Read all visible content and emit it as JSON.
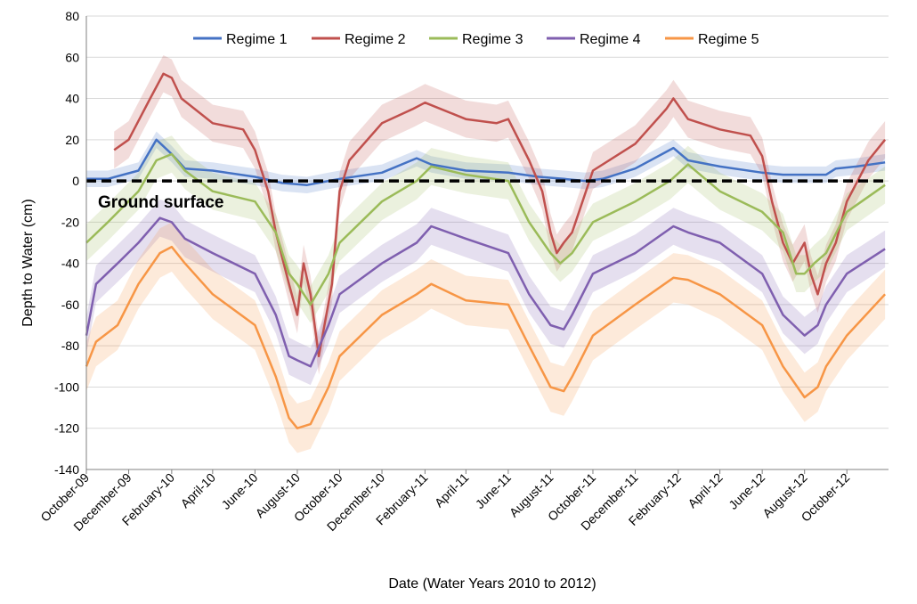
{
  "chart_data": {
    "type": "line",
    "xlabel": "Date (Water Years 2010 to 2012)",
    "ylabel": "Depth to Water (cm)",
    "ylim": [
      -140,
      80
    ],
    "yticks": [
      80,
      60,
      40,
      20,
      0,
      -20,
      -40,
      -60,
      -80,
      -100,
      -120,
      -140
    ],
    "xlim": [
      "2009-10-01",
      "2012-11-30"
    ],
    "xticks": [
      "October-09",
      "December-09",
      "February-10",
      "April-10",
      "June-10",
      "August-10",
      "October-10",
      "December-10",
      "February-11",
      "April-11",
      "June-11",
      "August-11",
      "October-11",
      "December-11",
      "February-12",
      "April-12",
      "June-12",
      "August-12",
      "October-12"
    ],
    "xtick_dates": [
      "2009-10-01",
      "2009-12-01",
      "2010-02-01",
      "2010-04-01",
      "2010-06-01",
      "2010-08-01",
      "2010-10-01",
      "2010-12-01",
      "2011-02-01",
      "2011-04-01",
      "2011-06-01",
      "2011-08-01",
      "2011-10-01",
      "2011-12-01",
      "2012-02-01",
      "2012-04-01",
      "2012-06-01",
      "2012-08-01",
      "2012-10-01"
    ],
    "grid": "horizontal",
    "legend": "top",
    "annotation": {
      "text": "Ground surface",
      "y": 0
    },
    "series": [
      {
        "name": "Regime 1",
        "color": "#4472C4",
        "band": 4,
        "x": [
          "2009-10-01",
          "2009-11-01",
          "2009-12-15",
          "2010-01-10",
          "2010-02-01",
          "2010-02-20",
          "2010-04-01",
          "2010-06-01",
          "2010-07-10",
          "2010-08-15",
          "2010-09-15",
          "2010-10-01",
          "2010-12-01",
          "2011-01-20",
          "2011-02-10",
          "2011-04-01",
          "2011-06-01",
          "2011-07-15",
          "2011-08-20",
          "2011-09-20",
          "2011-10-15",
          "2011-12-01",
          "2012-01-25",
          "2012-02-15",
          "2012-04-01",
          "2012-06-01",
          "2012-07-01",
          "2012-08-01",
          "2012-09-01",
          "2012-09-15",
          "2012-10-15",
          "2012-11-25"
        ],
        "y": [
          1,
          1,
          5,
          20,
          13,
          6,
          5,
          2,
          -1,
          -2,
          0,
          1,
          4,
          11,
          8,
          5,
          4,
          2,
          1,
          0,
          1,
          6,
          16,
          10,
          7,
          4,
          3,
          3,
          3,
          6,
          7,
          9
        ]
      },
      {
        "name": "Regime 2",
        "color": "#C0504D",
        "band": 9,
        "x": [
          "2009-11-10",
          "2009-12-01",
          "2010-01-01",
          "2010-01-20",
          "2010-02-01",
          "2010-02-15",
          "2010-04-01",
          "2010-05-15",
          "2010-06-01",
          "2010-06-20",
          "2010-07-01",
          "2010-07-20",
          "2010-08-01",
          "2010-08-10",
          "2010-08-20",
          "2010-09-01",
          "2010-09-20",
          "2010-10-01",
          "2010-10-15",
          "2010-12-01",
          "2011-01-15",
          "2011-02-01",
          "2011-04-01",
          "2011-05-15",
          "2011-06-01",
          "2011-07-01",
          "2011-07-20",
          "2011-08-01",
          "2011-08-10",
          "2011-08-20",
          "2011-09-01",
          "2011-10-01",
          "2011-12-01",
          "2012-01-15",
          "2012-01-25",
          "2012-02-15",
          "2012-04-01",
          "2012-05-15",
          "2012-06-01",
          "2012-06-15",
          "2012-07-01",
          "2012-07-15",
          "2012-08-01",
          "2012-08-10",
          "2012-08-20",
          "2012-09-01",
          "2012-09-15",
          "2012-10-01",
          "2012-11-01",
          "2012-11-25"
        ],
        "y": [
          15,
          20,
          40,
          52,
          50,
          40,
          28,
          25,
          15,
          -5,
          -25,
          -50,
          -65,
          -40,
          -55,
          -85,
          -50,
          -5,
          10,
          28,
          35,
          38,
          30,
          28,
          30,
          10,
          -5,
          -25,
          -35,
          -30,
          -25,
          5,
          18,
          35,
          40,
          30,
          25,
          22,
          12,
          -10,
          -30,
          -40,
          -30,
          -45,
          -55,
          -40,
          -30,
          -10,
          10,
          20
        ]
      },
      {
        "name": "Regime 3",
        "color": "#9BBB59",
        "band": 9,
        "x": [
          "2009-10-01",
          "2009-11-01",
          "2009-12-15",
          "2010-01-10",
          "2010-02-01",
          "2010-02-20",
          "2010-04-01",
          "2010-06-01",
          "2010-07-01",
          "2010-07-20",
          "2010-08-01",
          "2010-08-20",
          "2010-09-15",
          "2010-10-01",
          "2010-12-01",
          "2011-01-20",
          "2011-02-10",
          "2011-04-01",
          "2011-06-01",
          "2011-07-01",
          "2011-08-01",
          "2011-08-15",
          "2011-09-01",
          "2011-10-01",
          "2011-12-01",
          "2012-01-20",
          "2012-02-15",
          "2012-04-01",
          "2012-06-01",
          "2012-07-01",
          "2012-07-20",
          "2012-08-01",
          "2012-08-15",
          "2012-09-01",
          "2012-10-01",
          "2012-11-25"
        ],
        "y": [
          -30,
          -20,
          -5,
          10,
          13,
          5,
          -5,
          -10,
          -25,
          -45,
          -50,
          -60,
          -45,
          -30,
          -10,
          0,
          7,
          3,
          0,
          -20,
          -35,
          -40,
          -35,
          -20,
          -10,
          0,
          8,
          -5,
          -15,
          -25,
          -45,
          -45,
          -40,
          -35,
          -15,
          -2
        ]
      },
      {
        "name": "Regime 4",
        "color": "#7F5FAF",
        "band": 9,
        "x": [
          "2009-10-01",
          "2009-10-15",
          "2009-11-15",
          "2009-12-15",
          "2010-01-15",
          "2010-02-01",
          "2010-02-20",
          "2010-04-01",
          "2010-06-01",
          "2010-07-01",
          "2010-07-20",
          "2010-08-01",
          "2010-08-20",
          "2010-09-15",
          "2010-10-01",
          "2010-12-01",
          "2011-01-20",
          "2011-02-10",
          "2011-04-01",
          "2011-06-01",
          "2011-07-01",
          "2011-08-01",
          "2011-08-20",
          "2011-09-01",
          "2011-10-01",
          "2011-12-01",
          "2012-01-25",
          "2012-02-15",
          "2012-04-01",
          "2012-06-01",
          "2012-07-01",
          "2012-08-01",
          "2012-08-20",
          "2012-09-01",
          "2012-10-01",
          "2012-11-25"
        ],
        "y": [
          -75,
          -50,
          -40,
          -30,
          -18,
          -20,
          -28,
          -35,
          -45,
          -65,
          -85,
          -87,
          -90,
          -70,
          -55,
          -40,
          -30,
          -22,
          -28,
          -35,
          -55,
          -70,
          -72,
          -65,
          -45,
          -35,
          -22,
          -25,
          -30,
          -45,
          -65,
          -75,
          -70,
          -60,
          -45,
          -33
        ]
      },
      {
        "name": "Regime 5",
        "color": "#F79646",
        "band": 12,
        "x": [
          "2009-10-01",
          "2009-10-15",
          "2009-11-15",
          "2009-12-15",
          "2010-01-15",
          "2010-02-01",
          "2010-02-20",
          "2010-04-01",
          "2010-06-01",
          "2010-07-01",
          "2010-07-20",
          "2010-08-01",
          "2010-08-20",
          "2010-09-15",
          "2010-10-01",
          "2010-12-01",
          "2011-01-20",
          "2011-02-10",
          "2011-04-01",
          "2011-06-01",
          "2011-07-01",
          "2011-08-01",
          "2011-08-20",
          "2011-09-01",
          "2011-10-01",
          "2011-12-01",
          "2012-01-25",
          "2012-02-15",
          "2012-04-01",
          "2012-06-01",
          "2012-07-01",
          "2012-08-01",
          "2012-08-20",
          "2012-09-01",
          "2012-10-01",
          "2012-11-25"
        ],
        "y": [
          -90,
          -78,
          -70,
          -50,
          -35,
          -32,
          -40,
          -55,
          -70,
          -95,
          -115,
          -120,
          -118,
          -100,
          -85,
          -65,
          -55,
          -50,
          -58,
          -60,
          -80,
          -100,
          -102,
          -95,
          -75,
          -60,
          -47,
          -48,
          -55,
          -70,
          -90,
          -105,
          -100,
          -90,
          -75,
          -55
        ]
      }
    ]
  }
}
